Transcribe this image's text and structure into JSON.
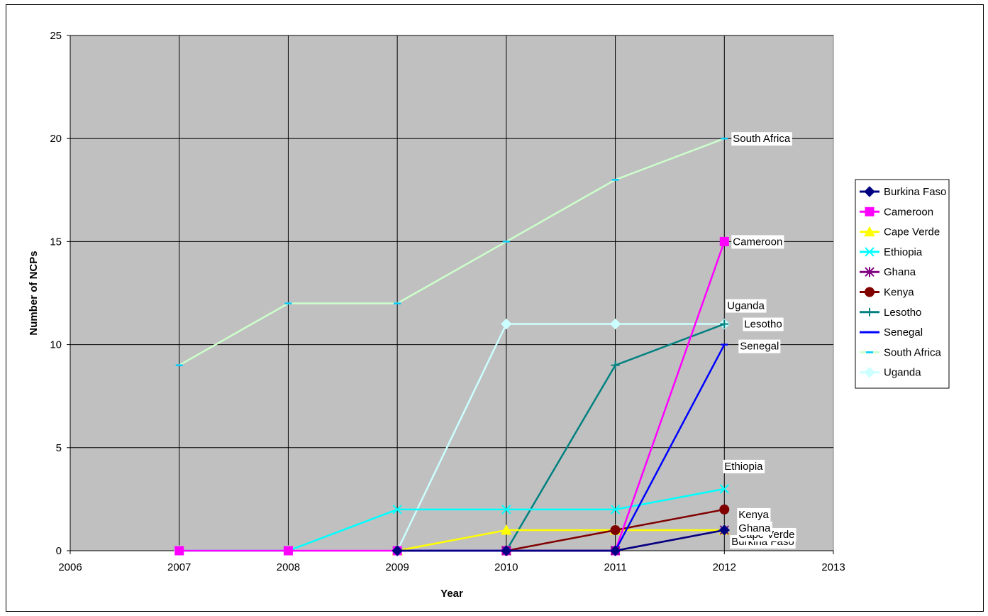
{
  "chart_data": {
    "type": "line",
    "title": "",
    "xlabel": "Year",
    "ylabel": "Number of NCPs",
    "xlim": [
      2006,
      2013
    ],
    "ylim": [
      0,
      25
    ],
    "x_ticks": [
      2006,
      2007,
      2008,
      2009,
      2010,
      2011,
      2012,
      2013
    ],
    "y_ticks": [
      0,
      5,
      10,
      15,
      20,
      25
    ],
    "grid": true,
    "legend_position": "right",
    "plot_background": "#c0c0c0",
    "series": [
      {
        "name": "Burkina Faso",
        "color": "#000080",
        "marker": "diamond",
        "x": [
          2009,
          2010,
          2011,
          2012
        ],
        "values": [
          0,
          0,
          0,
          1
        ],
        "end_label": "Burkina Faso"
      },
      {
        "name": "Cameroon",
        "color": "#ff00ff",
        "marker": "square",
        "x": [
          2007,
          2008,
          2009,
          2010,
          2011,
          2012
        ],
        "values": [
          0,
          0,
          0,
          0,
          0,
          15
        ],
        "end_label": "Cameroon"
      },
      {
        "name": "Cape Verde",
        "color": "#ffff00",
        "marker": "triangle",
        "x": [
          2009,
          2010,
          2011,
          2012
        ],
        "values": [
          0,
          1,
          1,
          1
        ],
        "end_label": "Cape Verde"
      },
      {
        "name": "Ethiopia",
        "color": "#00ffff",
        "marker": "x",
        "x": [
          2007,
          2008,
          2009,
          2010,
          2011,
          2012
        ],
        "values": [
          0,
          0,
          2,
          2,
          2,
          3
        ],
        "end_label": "Ethiopia"
      },
      {
        "name": "Ghana",
        "color": "#800080",
        "marker": "star",
        "x": [
          2010,
          2011,
          2012
        ],
        "values": [
          0,
          0,
          1
        ],
        "end_label": "Ghana"
      },
      {
        "name": "Kenya",
        "color": "#800000",
        "marker": "circle",
        "x": [
          2010,
          2011,
          2012
        ],
        "values": [
          0,
          1,
          2
        ],
        "end_label": "Kenya"
      },
      {
        "name": "Lesotho",
        "color": "#008080",
        "marker": "plus",
        "x": [
          2010,
          2011,
          2012
        ],
        "values": [
          0,
          9,
          11
        ],
        "end_label": "Lesotho"
      },
      {
        "name": "Senegal",
        "color": "#0000ff",
        "marker": "dash",
        "x": [
          2009,
          2010,
          2011,
          2012
        ],
        "values": [
          0,
          0,
          0,
          10
        ],
        "end_label": "Senegal"
      },
      {
        "name": "South Africa",
        "color": "#ccffcc",
        "marker": "dash",
        "marker_color": "#00ccff",
        "x": [
          2007,
          2008,
          2009,
          2010,
          2011,
          2012
        ],
        "values": [
          9,
          12,
          12,
          15,
          18,
          20
        ],
        "end_label": "South Africa"
      },
      {
        "name": "Uganda",
        "color": "#ccffff",
        "marker": "diamond",
        "x": [
          2007,
          2008,
          2009,
          2010,
          2011,
          2012
        ],
        "values": [
          0,
          0,
          0,
          11,
          11,
          11
        ],
        "end_label": "Uganda"
      }
    ]
  }
}
